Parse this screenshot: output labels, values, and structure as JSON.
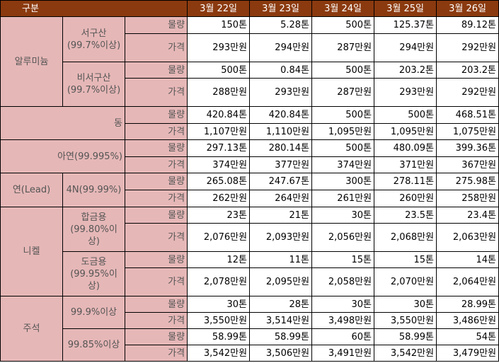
{
  "header": {
    "category": "구분",
    "dates": [
      "3월 22일",
      "3월 23일",
      "3월 24일",
      "3월 25일",
      "3월 26일"
    ]
  },
  "labels": {
    "qty": "물량",
    "price": "가격"
  },
  "aluminum": {
    "name": "알루미늄",
    "west": {
      "name": "서구산",
      "purity": "(99.7%이상)",
      "qty": [
        "150톤",
        "5.28톤",
        "500톤",
        "125.37톤",
        "89.12톤"
      ],
      "price": [
        "293만원",
        "294만원",
        "287만원",
        "294만원",
        "292만원"
      ]
    },
    "nonwest": {
      "name": "비서구산",
      "purity": "(99.7%이상)",
      "qty": [
        "500톤",
        "0.84톤",
        "500톤",
        "203.2톤",
        "203.2톤"
      ],
      "price": [
        "288만원",
        "293만원",
        "287만원",
        "293만원",
        "292만원"
      ]
    }
  },
  "copper": {
    "name": "동",
    "qty": [
      "420.84톤",
      "420.84톤",
      "500톤",
      "500톤",
      "468.51톤"
    ],
    "price": [
      "1,107만원",
      "1,110만원",
      "1,095만원",
      "1,095만원",
      "1,075만원"
    ]
  },
  "zinc": {
    "name": "아연(99.995%)",
    "qty": [
      "297.13톤",
      "280.14톤",
      "500톤",
      "480.09톤",
      "399.36톤"
    ],
    "price": [
      "374만원",
      "377만원",
      "374만원",
      "371만원",
      "367만원"
    ]
  },
  "lead": {
    "name": "연(Lead)",
    "grade": "4N(99.99%)",
    "qty": [
      "265.08톤",
      "247.67톤",
      "300톤",
      "278.11톤",
      "275.98톤"
    ],
    "price": [
      "262만원",
      "264만원",
      "261만원",
      "260만원",
      "258만원"
    ]
  },
  "nickel": {
    "name": "니켈",
    "alloy": {
      "name": "합금용",
      "purity": "(99.80%이상)",
      "qty": [
        "23톤",
        "21톤",
        "30톤",
        "23.5톤",
        "23.4톤"
      ],
      "price": [
        "2,076만원",
        "2,093만원",
        "2,056만원",
        "2,068만원",
        "2,063만원"
      ]
    },
    "plating": {
      "name": "도금용",
      "purity": "(99.95%이상)",
      "qty": [
        "12톤",
        "11톤",
        "15톤",
        "15톤",
        "14톤"
      ],
      "price": [
        "2,078만원",
        "2,095만원",
        "2,058만원",
        "2,070만원",
        "2,064만원"
      ]
    }
  },
  "tin": {
    "name": "주석",
    "g999": {
      "grade": "99.9%이상",
      "qty": [
        "30톤",
        "28톤",
        "30톤",
        "30톤",
        "28.99톤"
      ],
      "price": [
        "3,550만원",
        "3,514만원",
        "3,498만원",
        "3,550만원",
        "3,486만원"
      ]
    },
    "g9985": {
      "grade": "99.85%이상",
      "qty": [
        "58.99톤",
        "58.99톤",
        "60톤",
        "58.99톤",
        "54톤"
      ],
      "price": [
        "3,542만원",
        "3,506만원",
        "3,491만원",
        "3,542만원",
        "3,479만원"
      ]
    }
  }
}
